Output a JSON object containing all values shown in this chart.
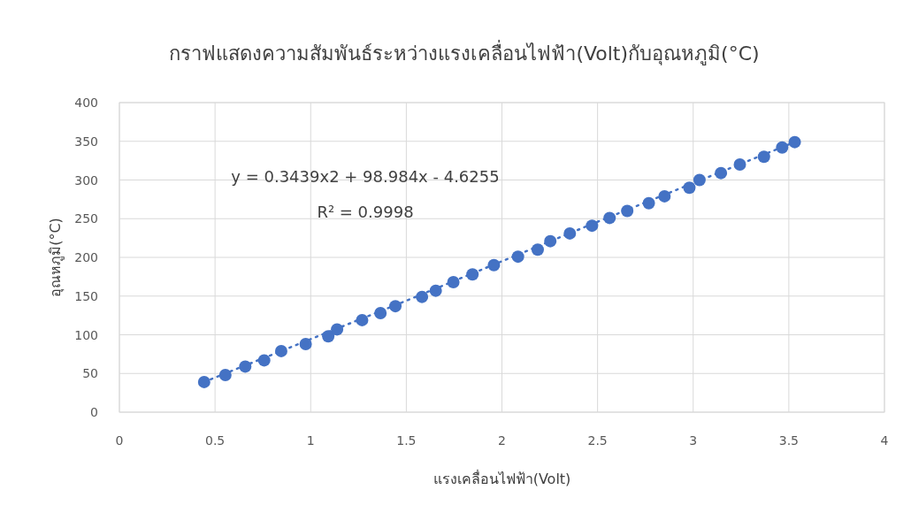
{
  "chart_data": {
    "type": "scatter",
    "title": "กราฟแสดงความสัมพันธ์ระหว่างแรงเคลื่อนไฟฟ้า(Volt)กับอุณหภูมิ(°C)",
    "xlabel": "แรงเคลื่อนไฟฟ้า(Volt)",
    "ylabel": "อุณหภูมิ(°C)",
    "xlim": [
      0,
      4
    ],
    "xticks": [
      0,
      0.5,
      1,
      1.5,
      2,
      2.5,
      3,
      3.5,
      4
    ],
    "ylim": [
      0,
      400
    ],
    "yticks": [
      0,
      50,
      100,
      150,
      200,
      250,
      300,
      350,
      400
    ],
    "grid": true,
    "marker": "circle",
    "annotations": [
      "y = 0.3439x2 + 98.984x - 4.6255",
      "R² = 0.9998"
    ],
    "series": [
      {
        "color": "#4472c4",
        "x": [
          0.443,
          0.554,
          0.658,
          0.757,
          0.846,
          0.974,
          1.092,
          1.138,
          1.269,
          1.365,
          1.443,
          1.582,
          1.654,
          1.746,
          1.846,
          1.958,
          2.084,
          2.187,
          2.253,
          2.355,
          2.471,
          2.563,
          2.655,
          2.768,
          2.85,
          2.98,
          3.033,
          3.145,
          3.244,
          3.37,
          3.465,
          3.531
        ],
        "values": [
          39,
          48,
          59,
          67,
          79,
          88,
          98,
          107,
          119,
          128,
          137,
          149,
          157,
          168,
          178,
          190,
          201,
          210,
          221,
          231,
          241,
          251,
          260,
          270,
          279,
          290,
          300,
          309,
          320,
          330,
          342,
          349
        ]
      },
      {
        "type": "line",
        "color": "#4472c4",
        "line_style": "dotted",
        "marker": "none",
        "x": [
          0.443,
          1.5,
          2.5,
          3.531
        ],
        "values": [
          39,
          144,
          246,
          349
        ]
      }
    ]
  }
}
